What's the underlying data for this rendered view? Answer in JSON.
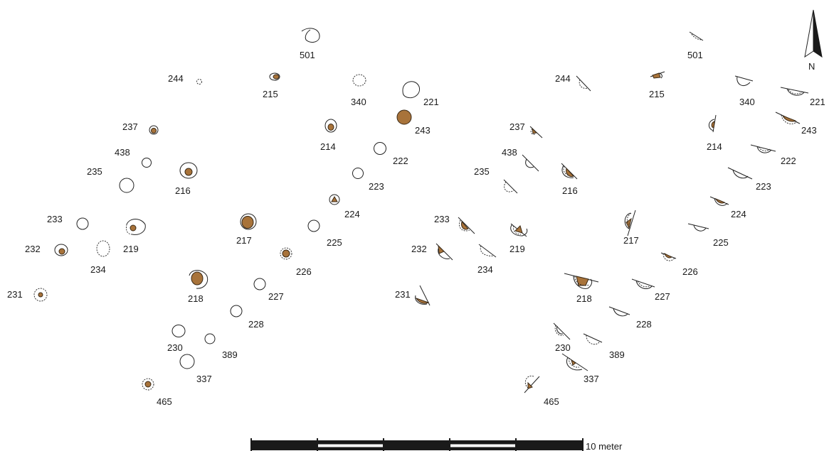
{
  "plan_labels": {
    "left": [
      "501",
      "244",
      "215",
      "340",
      "221",
      "243",
      "237",
      "214",
      "438",
      "222",
      "235",
      "216",
      "223",
      "224",
      "233",
      "217",
      "219",
      "225",
      "232",
      "234",
      "226",
      "231",
      "218",
      "227",
      "228",
      "230",
      "389",
      "337",
      "465"
    ],
    "right": [
      "501",
      "244",
      "215",
      "340",
      "221",
      "243",
      "237",
      "214",
      "438",
      "222",
      "235",
      "216",
      "223",
      "224",
      "233",
      "217",
      "219",
      "225",
      "232",
      "234",
      "226",
      "231",
      "218",
      "227",
      "228",
      "230",
      "389",
      "337",
      "465"
    ]
  },
  "scale": {
    "label": "10 meter",
    "segments": 5
  },
  "north": {
    "label": "N"
  },
  "colors": {
    "fill": "#a8733a",
    "stroke": "#222222"
  }
}
